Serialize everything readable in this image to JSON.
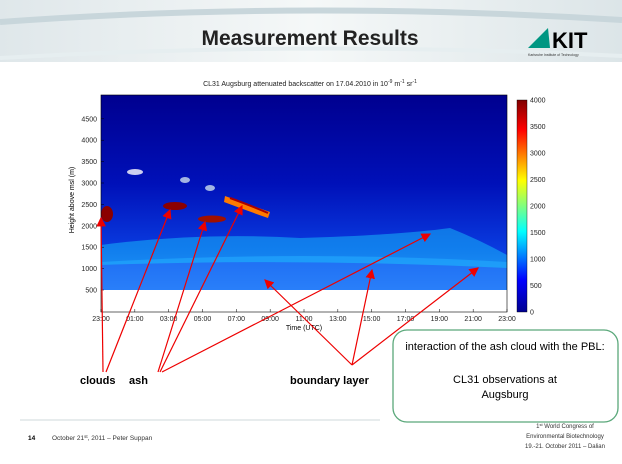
{
  "header": {
    "title": "Measurement Results",
    "logo": "KIT",
    "logo_sub": "Karlsruhe Institute of Technology"
  },
  "figure": {
    "title": [
      "CL31 Augsburg attenuated backscatter on 17.04.2010 in 10",
      "-9",
      " m",
      "-1",
      " sr",
      "-1"
    ],
    "y_label": "Height above msl (m)",
    "y_ticks": [
      "500",
      "1000",
      "1500",
      "2000",
      "2500",
      "3000",
      "3500",
      "4000",
      "4500"
    ],
    "x_label": "Time (UTC)",
    "x_ticks": [
      "23:00",
      "01:00",
      "03:00",
      "05:00",
      "07:00",
      "09:00",
      "11:00",
      "13:00",
      "15:00",
      "17:00",
      "19:00",
      "21:00",
      "23:00"
    ],
    "colorbar_ticks": [
      "0",
      "500",
      "1000",
      "1500",
      "2000",
      "2500",
      "3000",
      "3500",
      "4000"
    ]
  },
  "annotations": {
    "clouds": "clouds",
    "ash": "ash",
    "boundary_layer": "boundary layer"
  },
  "callout": [
    "interaction of the ash cloud with the PBL:",
    "CL31 observations at Augsburg"
  ],
  "footer": {
    "page": "14",
    "author": [
      "October 21",
      "st",
      ", 2011 – Peter Suppan"
    ],
    "conference": [
      [
        "1",
        "st",
        " World Congress of"
      ],
      "Environmental Biotechnology",
      "19.-21. October 2011 – Dalian"
    ]
  }
}
